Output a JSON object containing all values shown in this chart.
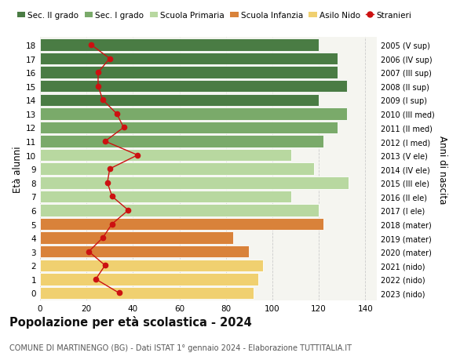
{
  "ages": [
    18,
    17,
    16,
    15,
    14,
    13,
    12,
    11,
    10,
    9,
    8,
    7,
    6,
    5,
    4,
    3,
    2,
    1,
    0
  ],
  "bar_values": [
    120,
    128,
    128,
    132,
    120,
    132,
    128,
    122,
    108,
    118,
    133,
    108,
    120,
    122,
    83,
    90,
    96,
    94,
    92
  ],
  "bar_colors": [
    "#4a7c44",
    "#4a7c44",
    "#4a7c44",
    "#4a7c44",
    "#4a7c44",
    "#7aaa6a",
    "#7aaa6a",
    "#7aaa6a",
    "#b8d8a0",
    "#b8d8a0",
    "#b8d8a0",
    "#b8d8a0",
    "#b8d8a0",
    "#d9823a",
    "#d9823a",
    "#d9823a",
    "#f0d070",
    "#f0d070",
    "#f0d070"
  ],
  "stranieri_values": [
    22,
    30,
    25,
    25,
    27,
    33,
    36,
    28,
    42,
    30,
    29,
    31,
    38,
    31,
    27,
    21,
    28,
    24,
    34
  ],
  "right_labels": [
    "2005 (V sup)",
    "2006 (IV sup)",
    "2007 (III sup)",
    "2008 (II sup)",
    "2009 (I sup)",
    "2010 (III med)",
    "2011 (II med)",
    "2012 (I med)",
    "2013 (V ele)",
    "2014 (IV ele)",
    "2015 (III ele)",
    "2016 (II ele)",
    "2017 (I ele)",
    "2018 (mater)",
    "2019 (mater)",
    "2020 (mater)",
    "2021 (nido)",
    "2022 (nido)",
    "2023 (nido)"
  ],
  "ylabel_left": "Età alunni",
  "ylabel_right": "Anni di nascita",
  "xlim": [
    0,
    145
  ],
  "title": "Popolazione per età scolastica - 2024",
  "subtitle": "COMUNE DI MARTINENGO (BG) - Dati ISTAT 1° gennaio 2024 - Elaborazione TUTTITALIA.IT",
  "legend_labels": [
    "Sec. II grado",
    "Sec. I grado",
    "Scuola Primaria",
    "Scuola Infanzia",
    "Asilo Nido",
    "Stranieri"
  ],
  "legend_colors": [
    "#4a7c44",
    "#7aaa6a",
    "#b8d8a0",
    "#d9823a",
    "#f0d070",
    "#cc1111"
  ],
  "background_color": "#ffffff",
  "plot_bg_color": "#f5f5f0",
  "grid_color": "#cccccc",
  "bar_height": 0.88,
  "stranieri_color": "#cc1111",
  "xticks": [
    0,
    20,
    40,
    60,
    80,
    100,
    120,
    140
  ]
}
